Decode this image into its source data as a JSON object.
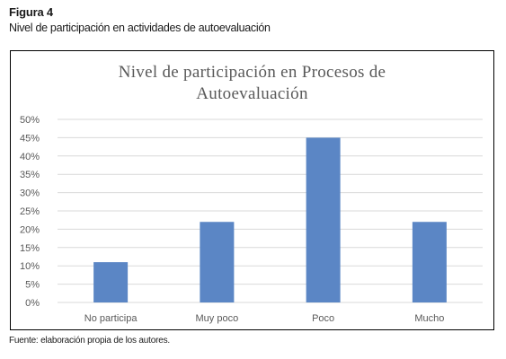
{
  "figure": {
    "label": "Figura 4",
    "caption": "Nivel de participación en actividades de autoevaluación"
  },
  "source": "Fuente: elaboración propia de los autores.",
  "colors": {
    "bar": "#5b86c5",
    "gridline": "#d9d9d9",
    "tick_text": "#595959",
    "title_text": "#595959"
  },
  "chart_data": {
    "type": "bar",
    "title_lines": [
      "Nivel de participación  en Procesos  de",
      "Autoevaluación"
    ],
    "categories": [
      "No participa",
      "Muy poco",
      "Poco",
      "Mucho"
    ],
    "values": [
      11,
      22,
      45,
      22
    ],
    "ylim": [
      0,
      50
    ],
    "yticks": [
      "0%",
      "5%",
      "10%",
      "15%",
      "20%",
      "25%",
      "30%",
      "35%",
      "40%",
      "45%",
      "50%"
    ],
    "unit": "%",
    "grid": true,
    "legend": "none"
  }
}
